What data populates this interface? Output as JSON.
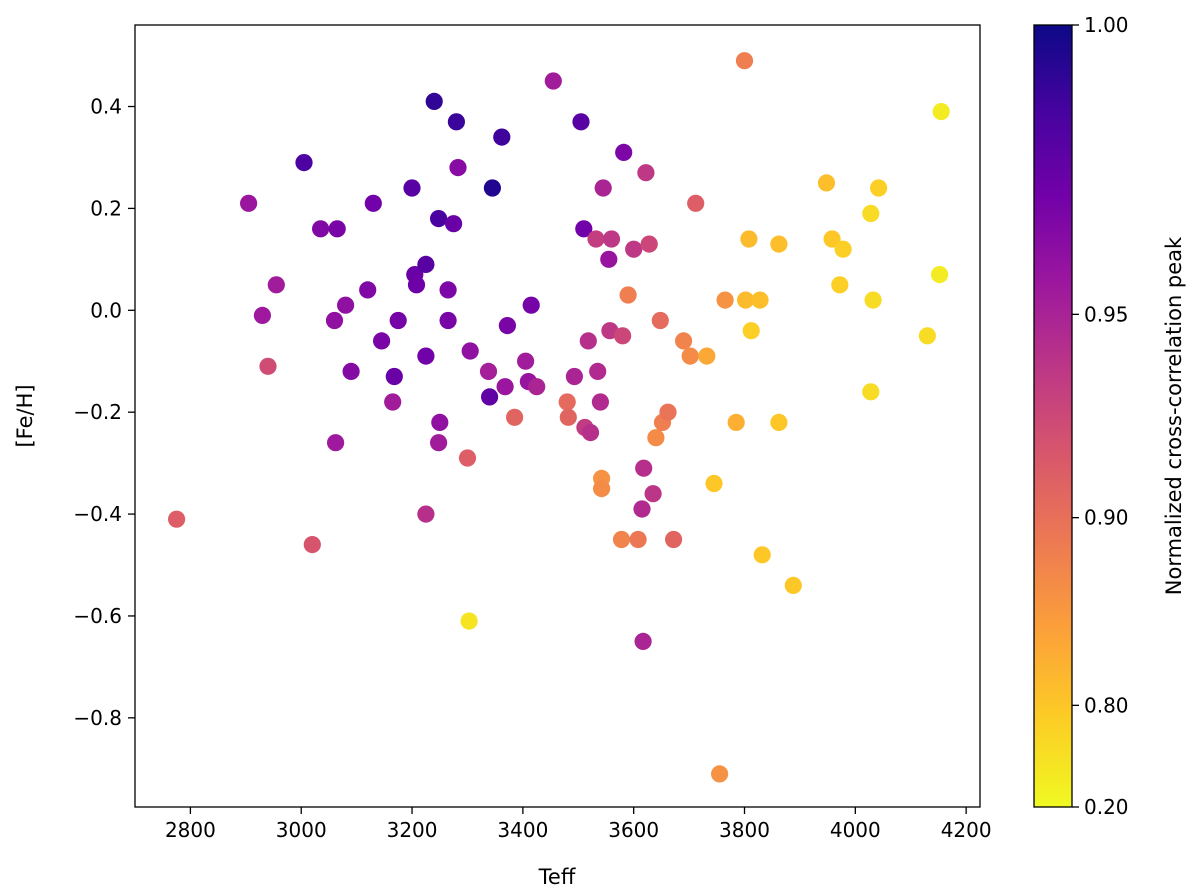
{
  "chart_data": {
    "type": "scatter",
    "xlabel": "Teff",
    "ylabel": "[Fe/H]",
    "xlim": [
      2700,
      4225
    ],
    "ylim": [
      -0.975,
      0.56
    ],
    "xticks": [
      2800,
      3000,
      3200,
      3400,
      3600,
      3800,
      4000,
      4200
    ],
    "yticks": [
      0.4,
      0.2,
      0.0,
      -0.2,
      -0.4,
      -0.6,
      -0.8
    ],
    "ytick_labels": [
      "0.4",
      "0.2",
      "0.0",
      "−0.2",
      "−0.4",
      "−0.6",
      "−0.8"
    ],
    "colorbar": {
      "label": "Normalized cross-correlation peak",
      "ticks": [
        1.0,
        0.95,
        0.9,
        0.8,
        0.2
      ],
      "tick_labels": [
        "1.00",
        "0.95",
        "0.90",
        "0.80",
        "0.20"
      ],
      "colormap": "plasma",
      "colormap_stops": [
        "#0d0887",
        "#46039f",
        "#7201a8",
        "#9c179e",
        "#bd3786",
        "#d8576b",
        "#ed7953",
        "#fb9f3a",
        "#fdca26",
        "#f0f921"
      ]
    },
    "grid": false,
    "points": [
      {
        "x": 2775,
        "y": -0.41,
        "c": 0.58
      },
      {
        "x": 2905,
        "y": 0.21,
        "c": 0.33
      },
      {
        "x": 2930,
        "y": -0.01,
        "c": 0.34
      },
      {
        "x": 2940,
        "y": -0.11,
        "c": 0.52
      },
      {
        "x": 2955,
        "y": 0.05,
        "c": 0.35
      },
      {
        "x": 3005,
        "y": 0.29,
        "c": 0.13
      },
      {
        "x": 3020,
        "y": -0.46,
        "c": 0.55
      },
      {
        "x": 3035,
        "y": 0.16,
        "c": 0.26
      },
      {
        "x": 3060,
        "y": -0.02,
        "c": 0.3
      },
      {
        "x": 3062,
        "y": -0.26,
        "c": 0.34
      },
      {
        "x": 3065,
        "y": 0.16,
        "c": 0.24
      },
      {
        "x": 3080,
        "y": 0.01,
        "c": 0.3
      },
      {
        "x": 3090,
        "y": -0.12,
        "c": 0.27
      },
      {
        "x": 3120,
        "y": 0.04,
        "c": 0.26
      },
      {
        "x": 3130,
        "y": 0.21,
        "c": 0.22
      },
      {
        "x": 3145,
        "y": -0.06,
        "c": 0.24
      },
      {
        "x": 3165,
        "y": -0.18,
        "c": 0.35
      },
      {
        "x": 3168,
        "y": -0.13,
        "c": 0.2
      },
      {
        "x": 3175,
        "y": -0.02,
        "c": 0.23
      },
      {
        "x": 3200,
        "y": 0.24,
        "c": 0.16
      },
      {
        "x": 3205,
        "y": 0.07,
        "c": 0.2
      },
      {
        "x": 3208,
        "y": 0.05,
        "c": 0.21
      },
      {
        "x": 3225,
        "y": 0.09,
        "c": 0.16
      },
      {
        "x": 3225,
        "y": -0.09,
        "c": 0.22
      },
      {
        "x": 3225,
        "y": -0.4,
        "c": 0.42
      },
      {
        "x": 3240,
        "y": 0.41,
        "c": 0.07
      },
      {
        "x": 3248,
        "y": 0.18,
        "c": 0.12
      },
      {
        "x": 3248,
        "y": -0.26,
        "c": 0.35
      },
      {
        "x": 3250,
        "y": -0.22,
        "c": 0.3
      },
      {
        "x": 3265,
        "y": 0.04,
        "c": 0.25
      },
      {
        "x": 3265,
        "y": -0.02,
        "c": 0.24
      },
      {
        "x": 3275,
        "y": 0.17,
        "c": 0.2
      },
      {
        "x": 3280,
        "y": 0.37,
        "c": 0.09
      },
      {
        "x": 3283,
        "y": 0.28,
        "c": 0.28
      },
      {
        "x": 3300,
        "y": -0.29,
        "c": 0.58
      },
      {
        "x": 3303,
        "y": -0.61,
        "c": 0.95
      },
      {
        "x": 3305,
        "y": -0.08,
        "c": 0.3
      },
      {
        "x": 3338,
        "y": -0.12,
        "c": 0.36
      },
      {
        "x": 3340,
        "y": -0.17,
        "c": 0.18
      },
      {
        "x": 3345,
        "y": 0.24,
        "c": 0.04
      },
      {
        "x": 3362,
        "y": 0.34,
        "c": 0.1
      },
      {
        "x": 3368,
        "y": -0.15,
        "c": 0.33
      },
      {
        "x": 3372,
        "y": -0.03,
        "c": 0.24
      },
      {
        "x": 3385,
        "y": -0.21,
        "c": 0.6
      },
      {
        "x": 3405,
        "y": -0.1,
        "c": 0.35
      },
      {
        "x": 3410,
        "y": -0.14,
        "c": 0.32
      },
      {
        "x": 3415,
        "y": 0.01,
        "c": 0.23
      },
      {
        "x": 3425,
        "y": -0.15,
        "c": 0.38
      },
      {
        "x": 3455,
        "y": 0.45,
        "c": 0.35
      },
      {
        "x": 3480,
        "y": -0.18,
        "c": 0.62
      },
      {
        "x": 3482,
        "y": -0.21,
        "c": 0.6
      },
      {
        "x": 3493,
        "y": -0.13,
        "c": 0.38
      },
      {
        "x": 3505,
        "y": 0.37,
        "c": 0.16
      },
      {
        "x": 3510,
        "y": 0.16,
        "c": 0.22
      },
      {
        "x": 3512,
        "y": -0.23,
        "c": 0.46
      },
      {
        "x": 3518,
        "y": -0.06,
        "c": 0.42
      },
      {
        "x": 3522,
        "y": -0.24,
        "c": 0.42
      },
      {
        "x": 3532,
        "y": 0.14,
        "c": 0.47
      },
      {
        "x": 3535,
        "y": -0.12,
        "c": 0.4
      },
      {
        "x": 3540,
        "y": -0.18,
        "c": 0.4
      },
      {
        "x": 3542,
        "y": -0.33,
        "c": 0.74
      },
      {
        "x": 3542,
        "y": -0.35,
        "c": 0.72
      },
      {
        "x": 3545,
        "y": 0.24,
        "c": 0.38
      },
      {
        "x": 3555,
        "y": 0.1,
        "c": 0.32
      },
      {
        "x": 3557,
        "y": -0.04,
        "c": 0.45
      },
      {
        "x": 3560,
        "y": 0.14,
        "c": 0.45
      },
      {
        "x": 3578,
        "y": -0.45,
        "c": 0.7
      },
      {
        "x": 3580,
        "y": -0.05,
        "c": 0.5
      },
      {
        "x": 3582,
        "y": 0.31,
        "c": 0.25
      },
      {
        "x": 3590,
        "y": 0.03,
        "c": 0.68
      },
      {
        "x": 3600,
        "y": 0.12,
        "c": 0.45
      },
      {
        "x": 3608,
        "y": -0.45,
        "c": 0.66
      },
      {
        "x": 3615,
        "y": -0.39,
        "c": 0.4
      },
      {
        "x": 3617,
        "y": -0.65,
        "c": 0.38
      },
      {
        "x": 3618,
        "y": -0.31,
        "c": 0.42
      },
      {
        "x": 3622,
        "y": 0.27,
        "c": 0.45
      },
      {
        "x": 3628,
        "y": 0.13,
        "c": 0.5
      },
      {
        "x": 3635,
        "y": -0.36,
        "c": 0.44
      },
      {
        "x": 3640,
        "y": -0.25,
        "c": 0.72
      },
      {
        "x": 3648,
        "y": -0.02,
        "c": 0.62
      },
      {
        "x": 3652,
        "y": -0.22,
        "c": 0.68
      },
      {
        "x": 3662,
        "y": -0.2,
        "c": 0.65
      },
      {
        "x": 3672,
        "y": -0.45,
        "c": 0.6
      },
      {
        "x": 3690,
        "y": -0.06,
        "c": 0.7
      },
      {
        "x": 3702,
        "y": -0.09,
        "c": 0.72
      },
      {
        "x": 3712,
        "y": 0.21,
        "c": 0.58
      },
      {
        "x": 3732,
        "y": -0.09,
        "c": 0.8
      },
      {
        "x": 3745,
        "y": -0.34,
        "c": 0.88
      },
      {
        "x": 3755,
        "y": -0.91,
        "c": 0.74
      },
      {
        "x": 3765,
        "y": 0.02,
        "c": 0.74
      },
      {
        "x": 3785,
        "y": -0.22,
        "c": 0.82
      },
      {
        "x": 3800,
        "y": 0.49,
        "c": 0.68
      },
      {
        "x": 3802,
        "y": 0.02,
        "c": 0.85
      },
      {
        "x": 3808,
        "y": 0.14,
        "c": 0.85
      },
      {
        "x": 3812,
        "y": -0.04,
        "c": 0.9
      },
      {
        "x": 3828,
        "y": 0.02,
        "c": 0.86
      },
      {
        "x": 3832,
        "y": -0.48,
        "c": 0.88
      },
      {
        "x": 3862,
        "y": 0.13,
        "c": 0.86
      },
      {
        "x": 3862,
        "y": -0.22,
        "c": 0.88
      },
      {
        "x": 3888,
        "y": -0.54,
        "c": 0.88
      },
      {
        "x": 3948,
        "y": 0.25,
        "c": 0.86
      },
      {
        "x": 3958,
        "y": 0.14,
        "c": 0.88
      },
      {
        "x": 3972,
        "y": 0.05,
        "c": 0.9
      },
      {
        "x": 3978,
        "y": 0.12,
        "c": 0.9
      },
      {
        "x": 4028,
        "y": 0.19,
        "c": 0.93
      },
      {
        "x": 4028,
        "y": -0.16,
        "c": 0.93
      },
      {
        "x": 4032,
        "y": 0.02,
        "c": 0.93
      },
      {
        "x": 4042,
        "y": 0.24,
        "c": 0.9
      },
      {
        "x": 4130,
        "y": -0.05,
        "c": 0.93
      },
      {
        "x": 4152,
        "y": 0.07,
        "c": 0.97
      },
      {
        "x": 4155,
        "y": 0.39,
        "c": 0.97
      }
    ]
  }
}
